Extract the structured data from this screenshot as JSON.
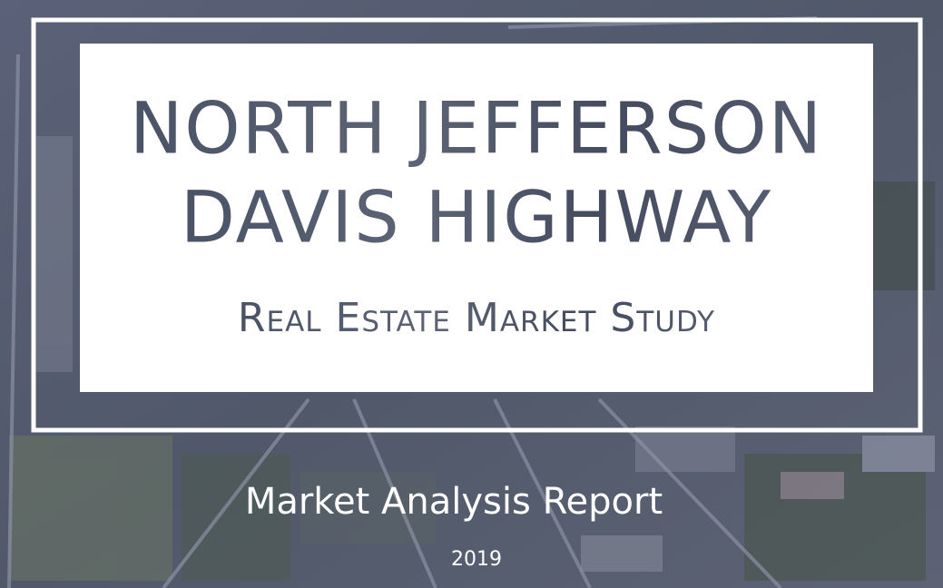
{
  "cover": {
    "title_lines": [
      "NORTH JEFFERSON",
      "DAVIS HIGHWAY"
    ],
    "subtitle": "Real Estate Market Study",
    "report": "Market Analysis Report",
    "year": "2019"
  }
}
